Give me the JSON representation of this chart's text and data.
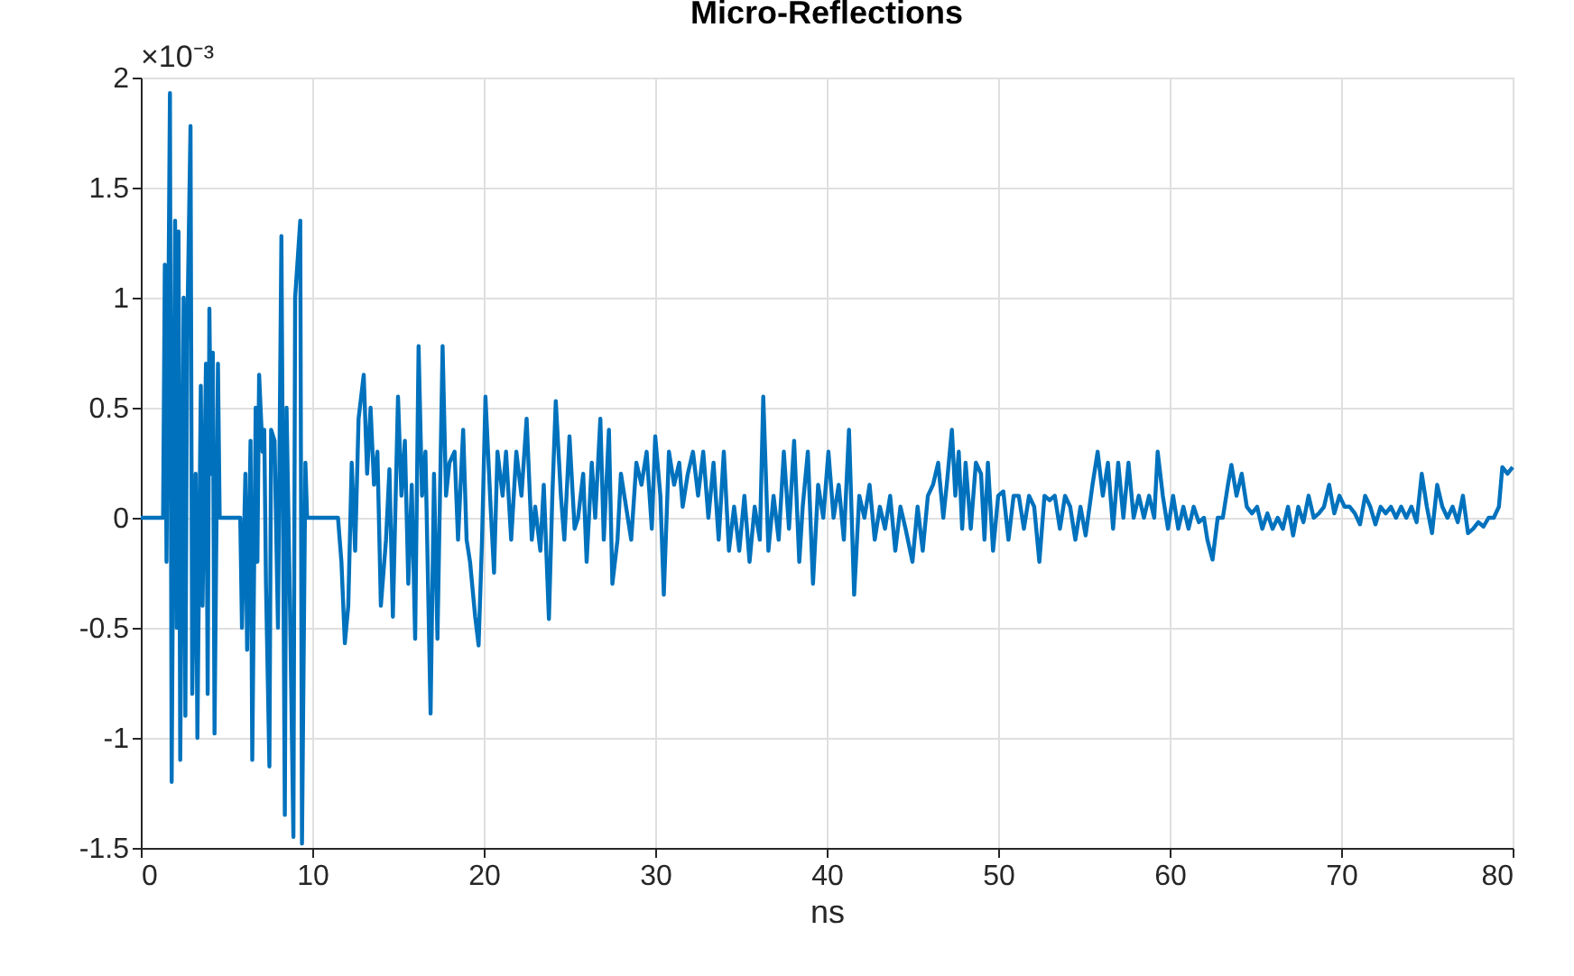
{
  "chart_data": {
    "type": "line",
    "title": "Micro-Reflections",
    "xlabel": "ns",
    "annotations": [
      "×10⁻³"
    ],
    "xlim": [
      0,
      80
    ],
    "xticks": [
      0,
      10,
      20,
      30,
      40,
      50,
      60,
      70,
      80
    ],
    "ylim": [
      -1.5,
      2
    ],
    "yticks": [
      -1.5,
      {
        "value": -1,
        "label": "-1"
      },
      -0.5,
      {
        "value": 0,
        "label": "0"
      },
      0.5,
      {
        "value": 1,
        "label": "1"
      },
      1.5,
      {
        "value": 2,
        "label": "2"
      }
    ],
    "grid": true,
    "line_style": "solid",
    "series": [
      {
        "color": "#0072bd",
        "x": [
          0,
          1.3,
          1.4,
          1.5,
          1.7,
          1.8,
          2.0,
          2.1,
          2.2,
          2.3,
          2.5,
          2.6,
          2.7,
          2.9,
          3.0,
          3.2,
          3.3,
          3.5,
          3.6,
          3.8,
          3.9,
          4.0,
          4.1,
          4.2,
          4.3,
          4.5,
          4.6,
          5.8,
          5.9,
          6.1,
          6.2,
          6.4,
          6.5,
          6.7,
          6.8,
          6.9,
          7.1,
          7.2,
          7.3,
          7.5,
          7.6,
          7.8,
          8.0,
          8.2,
          8.4,
          8.5,
          8.7,
          8.9,
          9.0,
          9.3,
          9.4,
          9.6,
          9.7,
          11.5,
          11.7,
          11.9,
          12.1,
          12.3,
          12.5,
          12.7,
          13.0,
          13.2,
          13.4,
          13.6,
          13.8,
          14.0,
          14.3,
          14.5,
          14.7,
          15.0,
          15.2,
          15.4,
          15.6,
          15.8,
          16.0,
          16.2,
          16.4,
          16.6,
          16.9,
          17.1,
          17.3,
          17.6,
          17.8,
          18.0,
          18.3,
          18.5,
          18.8,
          19.0,
          19.2,
          19.5,
          19.7,
          19.9,
          20.1,
          20.4,
          20.6,
          20.8,
          21.1,
          21.3,
          21.6,
          21.9,
          22.2,
          22.5,
          22.8,
          23.0,
          23.3,
          23.5,
          23.8,
          24.0,
          24.2,
          24.5,
          24.7,
          25.0,
          25.3,
          25.5,
          25.8,
          26.0,
          26.3,
          26.5,
          26.8,
          27.0,
          27.3,
          27.5,
          27.8,
          28.0,
          28.3,
          28.6,
          28.9,
          29.2,
          29.5,
          29.8,
          30.0,
          30.3,
          30.5,
          30.8,
          31.1,
          31.4,
          31.6,
          31.9,
          32.2,
          32.5,
          32.8,
          33.1,
          33.4,
          33.7,
          34.0,
          34.3,
          34.6,
          34.9,
          35.2,
          35.5,
          35.8,
          36.1,
          36.3,
          36.6,
          36.9,
          37.2,
          37.5,
          37.8,
          38.1,
          38.4,
          38.6,
          38.9,
          39.2,
          39.5,
          39.8,
          40.1,
          40.4,
          40.7,
          41.0,
          41.3,
          41.6,
          41.9,
          42.2,
          42.5,
          42.8,
          43.1,
          43.4,
          43.7,
          44.0,
          44.3,
          44.6,
          45.0,
          45.3,
          45.6,
          45.9,
          46.2,
          46.5,
          46.8,
          47.0,
          47.3,
          47.5,
          47.7,
          47.9,
          48.1,
          48.4,
          48.7,
          49.0,
          49.2,
          49.4,
          49.7,
          50.0,
          50.3,
          50.6,
          50.9,
          51.2,
          51.5,
          51.8,
          52.1,
          52.4,
          52.7,
          53.0,
          53.3,
          53.6,
          53.9,
          54.2,
          54.5,
          54.8,
          55.1,
          55.5,
          55.8,
          56.1,
          56.4,
          56.7,
          57.0,
          57.3,
          57.6,
          57.9,
          58.2,
          58.5,
          58.8,
          59.1,
          59.3,
          59.6,
          59.9,
          60.2,
          60.5,
          60.8,
          61.1,
          61.4,
          61.7,
          62.0,
          62.2,
          62.5,
          62.8,
          63.1,
          63.4,
          63.6,
          63.9,
          64.2,
          64.5,
          64.8,
          65.1,
          65.4,
          65.7,
          66.0,
          66.3,
          66.6,
          66.9,
          67.2,
          67.5,
          67.8,
          68.1,
          68.4,
          68.7,
          69.0,
          69.3,
          69.6,
          69.9,
          70.2,
          70.5,
          70.8,
          71.1,
          71.4,
          71.7,
          72.0,
          72.3,
          72.6,
          72.9,
          73.2,
          73.5,
          73.8,
          74.1,
          74.4,
          74.7,
          75.0,
          75.3,
          75.6,
          75.9,
          76.2,
          76.5,
          76.8,
          77.1,
          77.4,
          77.7,
          78.0,
          78.3,
          78.6,
          78.9,
          79.2,
          79.4,
          79.7,
          80.0
        ],
        "values": [
          0,
          0,
          1.15,
          -0.2,
          1.93,
          -1.2,
          1.35,
          -0.5,
          1.3,
          -1.1,
          1.0,
          -0.9,
          0.8,
          1.78,
          -0.8,
          0.2,
          -1.0,
          0.6,
          -0.4,
          0.7,
          -0.8,
          0.95,
          0.2,
          0.75,
          -0.98,
          0.7,
          0,
          0,
          -0.5,
          0.2,
          -0.6,
          0.35,
          -1.1,
          0.5,
          -0.2,
          0.65,
          0.3,
          0.4,
          -0.3,
          -1.13,
          0.4,
          0.35,
          -0.5,
          1.28,
          -1.35,
          0.5,
          -0.4,
          -1.45,
          1.0,
          1.35,
          -1.48,
          0.25,
          0,
          0,
          -0.2,
          -0.57,
          -0.4,
          0.25,
          -0.15,
          0.45,
          0.65,
          0.2,
          0.5,
          0.15,
          0.3,
          -0.4,
          -0.1,
          0.22,
          -0.45,
          0.55,
          0.1,
          0.35,
          -0.3,
          0.15,
          -0.55,
          0.78,
          0.1,
          0.3,
          -0.89,
          0.2,
          -0.55,
          0.78,
          0.1,
          0.25,
          0.3,
          -0.1,
          0.4,
          -0.1,
          -0.2,
          -0.45,
          -0.58,
          -0.1,
          0.55,
          0.05,
          -0.25,
          0.3,
          0.1,
          0.3,
          -0.1,
          0.3,
          0.1,
          0.45,
          -0.1,
          0.05,
          -0.15,
          0.15,
          -0.46,
          0.1,
          0.53,
          0.1,
          -0.1,
          0.37,
          -0.05,
          0.0,
          0.2,
          -0.2,
          0.25,
          0.0,
          0.45,
          -0.1,
          0.4,
          -0.3,
          -0.1,
          0.2,
          0.05,
          -0.1,
          0.25,
          0.15,
          0.3,
          -0.05,
          0.37,
          0.1,
          -0.35,
          0.3,
          0.15,
          0.25,
          0.05,
          0.2,
          0.3,
          0.1,
          0.3,
          0.0,
          0.25,
          -0.1,
          0.3,
          -0.15,
          0.05,
          -0.15,
          0.1,
          -0.2,
          0.05,
          -0.1,
          0.55,
          -0.15,
          0.1,
          -0.1,
          0.3,
          -0.05,
          0.35,
          -0.2,
          0.05,
          0.3,
          -0.3,
          0.15,
          0.0,
          0.3,
          0.0,
          0.15,
          -0.1,
          0.4,
          -0.35,
          0.1,
          0.0,
          0.15,
          -0.1,
          0.05,
          -0.05,
          0.1,
          -0.15,
          0.05,
          -0.05,
          -0.2,
          0.05,
          -0.15,
          0.1,
          0.15,
          0.25,
          0.0,
          0.15,
          0.4,
          0.1,
          0.3,
          -0.05,
          0.25,
          -0.05,
          0.25,
          0.2,
          -0.1,
          0.25,
          -0.15,
          0.1,
          0.12,
          -0.1,
          0.1,
          0.1,
          -0.05,
          0.1,
          0.05,
          -0.2,
          0.1,
          0.08,
          0.1,
          -0.05,
          0.1,
          0.05,
          -0.1,
          0.05,
          -0.08,
          0.15,
          0.3,
          0.1,
          0.25,
          -0.05,
          0.25,
          0.0,
          0.25,
          0.0,
          0.1,
          0.0,
          0.1,
          0.0,
          0.3,
          0.1,
          -0.05,
          0.1,
          -0.05,
          0.05,
          -0.05,
          0.05,
          -0.02,
          0.0,
          -0.1,
          -0.19,
          0.0,
          0.0,
          0.15,
          0.24,
          0.1,
          0.2,
          0.05,
          0.02,
          0.05,
          -0.05,
          0.02,
          -0.05,
          0.0,
          -0.05,
          0.05,
          -0.08,
          0.05,
          -0.02,
          0.1,
          0.0,
          0.02,
          0.05,
          0.15,
          0.02,
          0.1,
          0.05,
          0.05,
          0.02,
          -0.03,
          0.1,
          0.05,
          -0.03,
          0.05,
          0.02,
          0.05,
          0.0,
          0.05,
          0.0,
          0.05,
          -0.02,
          0.2,
          0.05,
          -0.07,
          0.15,
          0.05,
          0.0,
          0.05,
          -0.02,
          0.1,
          -0.07,
          -0.05,
          -0.02,
          -0.04,
          0.0,
          0.0,
          0.05,
          0.23,
          0.2,
          0.23
        ]
      }
    ]
  }
}
